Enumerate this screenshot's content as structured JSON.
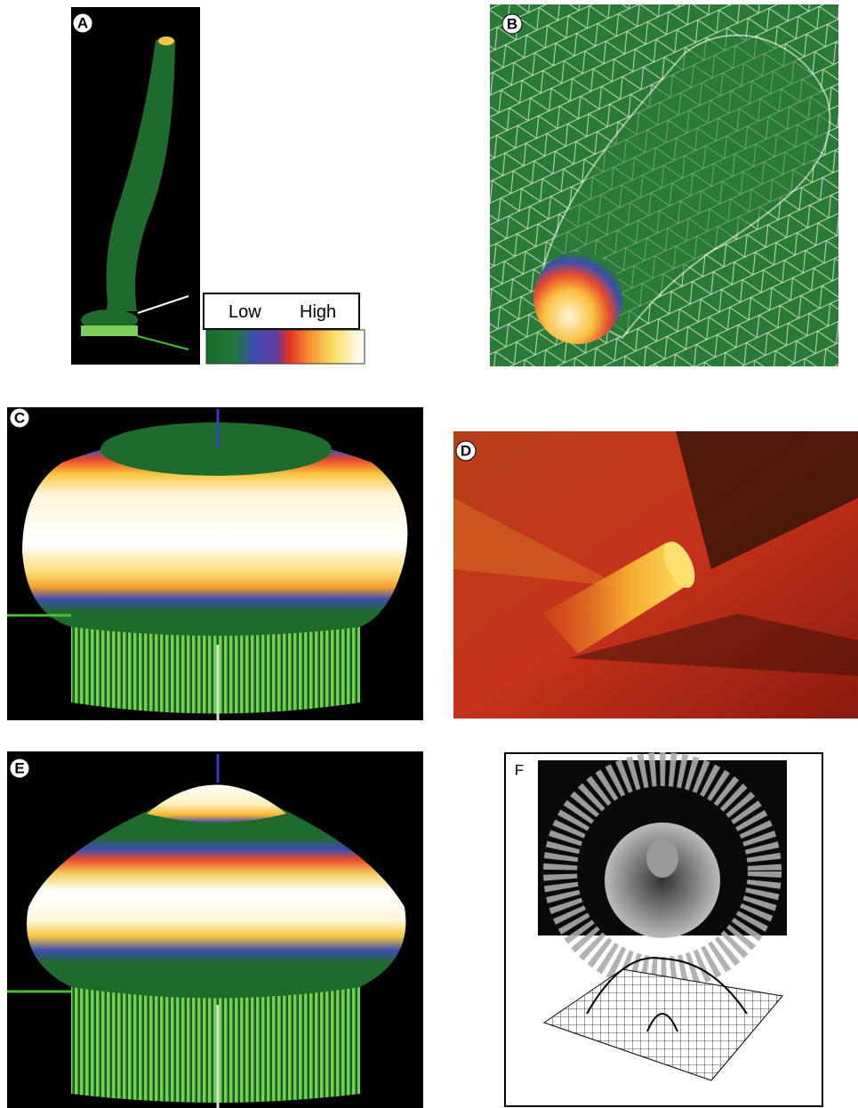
{
  "panels": [
    {
      "label": "A"
    },
    {
      "label": "B"
    },
    {
      "label": "C"
    },
    {
      "label": "D"
    },
    {
      "label": "E"
    },
    {
      "label": "F"
    }
  ],
  "legend": {
    "low": "Low",
    "high": "High"
  }
}
